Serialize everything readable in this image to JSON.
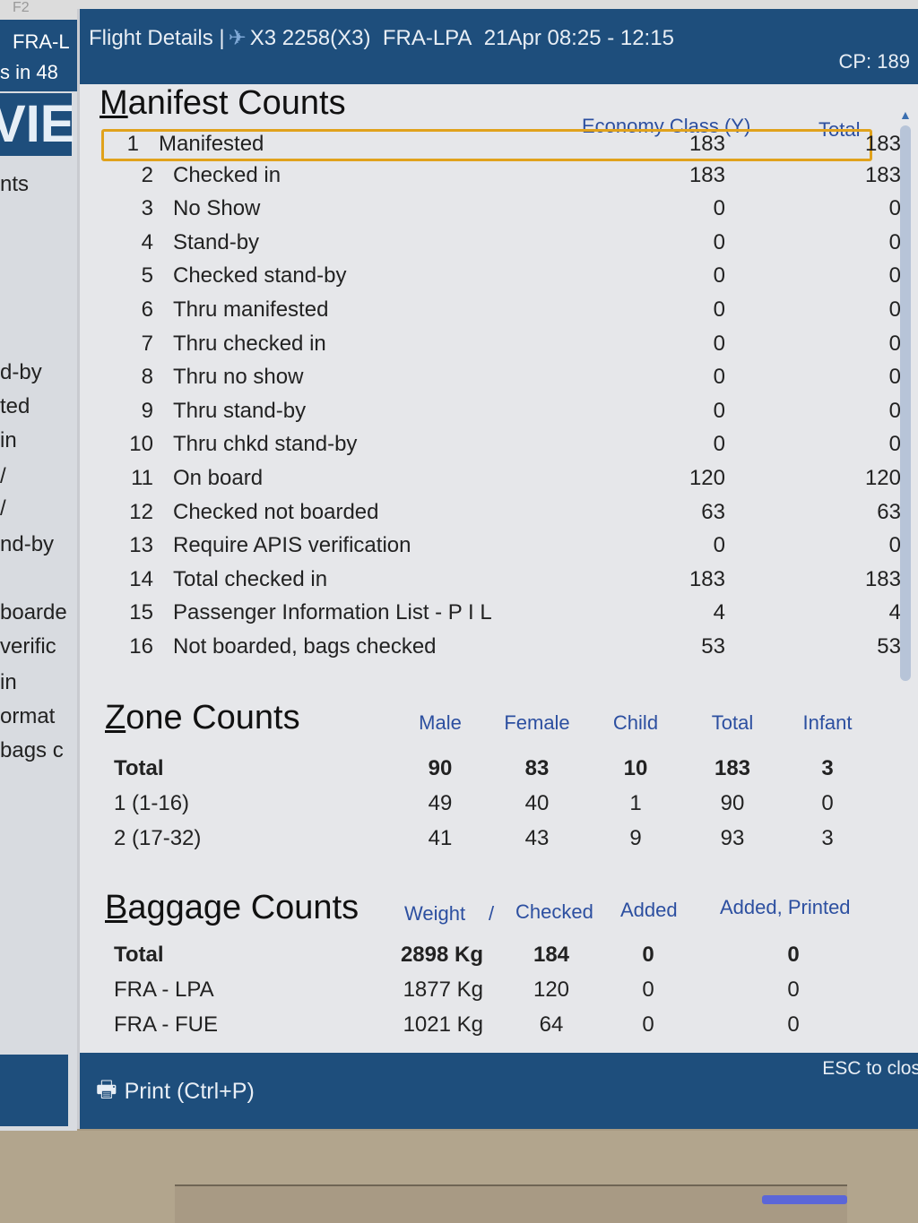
{
  "background": {
    "top_label": "F2",
    "left_panel": {
      "header_lines": [
        "FRA-L",
        "s in 48"
      ],
      "big_text": "VIE",
      "items": [
        "nts",
        "d-by",
        "ted",
        "in",
        "/",
        "/",
        "nd-by",
        "boarde",
        "verific",
        "in",
        "ormat",
        "bags c"
      ]
    }
  },
  "dialog": {
    "title": "Flight Details |",
    "flight": "X3 2258(X3)",
    "route": "FRA-LPA",
    "date_time": "21Apr 08:25 - 12:15",
    "cp": "CP: 189",
    "manifest": {
      "title": "Manifest Counts",
      "columns": [
        "Economy Class (Y)",
        "Total"
      ],
      "rows": [
        {
          "num": "1",
          "label": "Manifested",
          "economy": "183",
          "total": "183"
        },
        {
          "num": "2",
          "label": "Checked in",
          "economy": "183",
          "total": "183"
        },
        {
          "num": "3",
          "label": "No Show",
          "economy": "0",
          "total": "0"
        },
        {
          "num": "4",
          "label": "Stand-by",
          "economy": "0",
          "total": "0"
        },
        {
          "num": "5",
          "label": "Checked stand-by",
          "economy": "0",
          "total": "0"
        },
        {
          "num": "6",
          "label": "Thru manifested",
          "economy": "0",
          "total": "0"
        },
        {
          "num": "7",
          "label": "Thru checked in",
          "economy": "0",
          "total": "0"
        },
        {
          "num": "8",
          "label": "Thru no show",
          "economy": "0",
          "total": "0"
        },
        {
          "num": "9",
          "label": "Thru stand-by",
          "economy": "0",
          "total": "0"
        },
        {
          "num": "10",
          "label": "Thru chkd stand-by",
          "economy": "0",
          "total": "0"
        },
        {
          "num": "11",
          "label": "On board",
          "economy": "120",
          "total": "120"
        },
        {
          "num": "12",
          "label": "Checked not boarded",
          "economy": "63",
          "total": "63"
        },
        {
          "num": "13",
          "label": "Require APIS verification",
          "economy": "0",
          "total": "0"
        },
        {
          "num": "14",
          "label": "Total checked in",
          "economy": "183",
          "total": "183"
        },
        {
          "num": "15",
          "label": "Passenger Information List - P I L",
          "economy": "4",
          "total": "4"
        },
        {
          "num": "16",
          "label": "Not boarded, bags checked",
          "economy": "53",
          "total": "53"
        }
      ]
    },
    "zones": {
      "title": "Zone Counts",
      "columns": [
        "Male",
        "Female",
        "Child",
        "Total",
        "Infant"
      ],
      "rows": [
        {
          "label": "Total",
          "values": [
            "90",
            "83",
            "10",
            "183",
            "3"
          ]
        },
        {
          "label": "1 (1-16)",
          "values": [
            "49",
            "40",
            "1",
            "90",
            "0"
          ]
        },
        {
          "label": "2 (17-32)",
          "values": [
            "41",
            "43",
            "9",
            "93",
            "3"
          ]
        }
      ]
    },
    "baggage": {
      "title": "Baggage Counts",
      "columns": [
        "Weight",
        "/",
        "Checked",
        "Added",
        "Added, Printed"
      ],
      "rows": [
        {
          "label": "Total",
          "weight": "2898 Kg",
          "checked": "184",
          "added": "0",
          "added_printed": "0"
        },
        {
          "label": "FRA - LPA",
          "weight": "1877 Kg",
          "checked": "120",
          "added": "0",
          "added_printed": "0"
        },
        {
          "label": "FRA - FUE",
          "weight": "1021 Kg",
          "checked": "64",
          "added": "0",
          "added_printed": "0"
        }
      ]
    },
    "footer": {
      "print_label": "Print (Ctrl+P)",
      "esc_label": "ESC to clos"
    },
    "colors": {
      "titlebar": "#1e4e7c",
      "header_text": "#2c4fa0",
      "selection": "#e0a21c"
    }
  }
}
